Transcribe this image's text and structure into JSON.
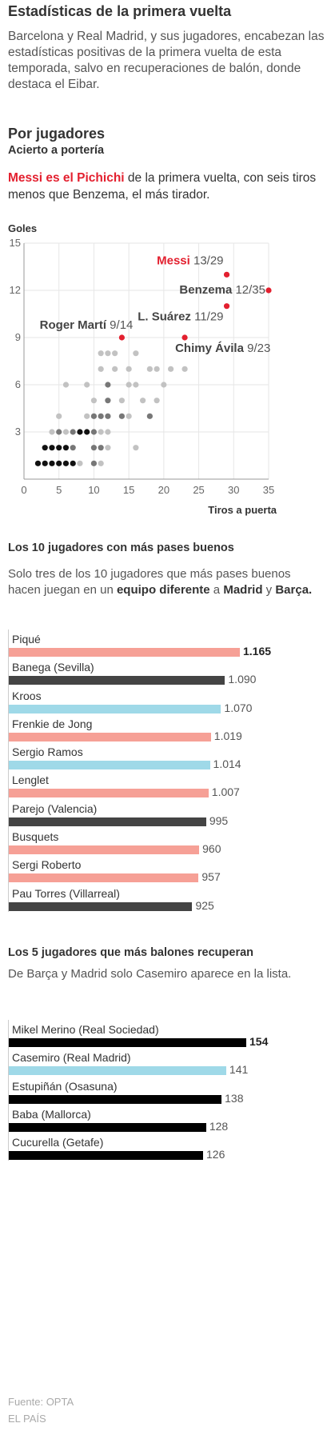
{
  "header": {
    "title": "Estadísticas de la primera vuelta",
    "lead": "Barcelona y Real Madrid, y sus jugadores, encabezan las estadísticas positivas de la primera vuelta de esta temporada, salvo en recuperaciones de balón, donde destaca el Eibar."
  },
  "players_section": {
    "title": "Por jugadores",
    "subtitle": "Acierto a portería",
    "desc_highlight": "Messi es el Pichichi",
    "desc_rest": " de la primera vuelta, con seis tiros menos que Benzema, el más tirador."
  },
  "passes_section": {
    "title": "Los 10 jugadores con más pases buenos",
    "desc_1": "Solo tres de los 10 jugadores que más pases buenos hacen juegan en un ",
    "desc_b1": "equipo diferente",
    "desc_2": " a ",
    "desc_b2": "Madrid",
    "desc_3": " y ",
    "desc_b3": "Barça."
  },
  "recoveries_section": {
    "title": "Los 5 jugadores que más balones recuperan",
    "desc": "De Barça y Madrid solo Casemiro aparece en la lista."
  },
  "source": {
    "line1": "Fuente: OPTA",
    "line2": "EL PAÍS"
  },
  "colors": {
    "barcelona": "#f6a096",
    "madrid": "#9fd9e8",
    "other": "#444444",
    "black": "#000000",
    "highlight": "#e3202f"
  },
  "chart_data": [
    {
      "type": "scatter",
      "title": "Acierto a portería",
      "xlabel": "Tiros a puerta",
      "ylabel": "Goles",
      "xlim": [
        0,
        35
      ],
      "ylim": [
        0,
        15
      ],
      "xticks": [
        0,
        5,
        10,
        15,
        20,
        25,
        30,
        35
      ],
      "yticks": [
        3,
        6,
        9,
        12,
        15
      ],
      "grid": true,
      "highlighted": [
        {
          "name": "Messi",
          "ratio": "13/29",
          "x": 29,
          "y": 13
        },
        {
          "name": "Benzema",
          "ratio": "12/35",
          "x": 35,
          "y": 12
        },
        {
          "name": "L. Suárez",
          "ratio": "11/29",
          "x": 29,
          "y": 11
        },
        {
          "name": "Roger Martí",
          "ratio": "9/14",
          "x": 14,
          "y": 9
        },
        {
          "name": "Chimy Ávila",
          "ratio": "9/23",
          "x": 23,
          "y": 9
        }
      ],
      "points": [
        {
          "x": 2,
          "y": 1,
          "shade": "dark"
        },
        {
          "x": 3,
          "y": 1,
          "shade": "dark"
        },
        {
          "x": 4,
          "y": 1,
          "shade": "dark"
        },
        {
          "x": 5,
          "y": 1,
          "shade": "dark"
        },
        {
          "x": 6,
          "y": 1,
          "shade": "dark"
        },
        {
          "x": 7,
          "y": 1,
          "shade": "dark"
        },
        {
          "x": 8,
          "y": 1,
          "shade": "light"
        },
        {
          "x": 10,
          "y": 1,
          "shade": "mid"
        },
        {
          "x": 11,
          "y": 1,
          "shade": "light"
        },
        {
          "x": 3,
          "y": 2,
          "shade": "dark"
        },
        {
          "x": 4,
          "y": 2,
          "shade": "dark"
        },
        {
          "x": 5,
          "y": 2,
          "shade": "dark"
        },
        {
          "x": 6,
          "y": 2,
          "shade": "dark"
        },
        {
          "x": 7,
          "y": 2,
          "shade": "mid"
        },
        {
          "x": 10,
          "y": 2,
          "shade": "mid"
        },
        {
          "x": 11,
          "y": 2,
          "shade": "mid"
        },
        {
          "x": 12,
          "y": 2,
          "shade": "light"
        },
        {
          "x": 16,
          "y": 2,
          "shade": "light"
        },
        {
          "x": 4,
          "y": 3,
          "shade": "light"
        },
        {
          "x": 5,
          "y": 3,
          "shade": "mid"
        },
        {
          "x": 6,
          "y": 3,
          "shade": "light"
        },
        {
          "x": 7,
          "y": 3,
          "shade": "mid"
        },
        {
          "x": 8,
          "y": 3,
          "shade": "dark"
        },
        {
          "x": 9,
          "y": 3,
          "shade": "dark"
        },
        {
          "x": 10,
          "y": 3,
          "shade": "mid"
        },
        {
          "x": 11,
          "y": 3,
          "shade": "light"
        },
        {
          "x": 12,
          "y": 3,
          "shade": "light"
        },
        {
          "x": 5,
          "y": 4,
          "shade": "light"
        },
        {
          "x": 9,
          "y": 4,
          "shade": "light"
        },
        {
          "x": 10,
          "y": 4,
          "shade": "mid"
        },
        {
          "x": 11,
          "y": 4,
          "shade": "mid"
        },
        {
          "x": 12,
          "y": 4,
          "shade": "mid"
        },
        {
          "x": 14,
          "y": 4,
          "shade": "mid"
        },
        {
          "x": 15,
          "y": 4,
          "shade": "light"
        },
        {
          "x": 18,
          "y": 4,
          "shade": "mid"
        },
        {
          "x": 10,
          "y": 5,
          "shade": "light"
        },
        {
          "x": 12,
          "y": 5,
          "shade": "mid"
        },
        {
          "x": 14,
          "y": 5,
          "shade": "light"
        },
        {
          "x": 17,
          "y": 5,
          "shade": "light"
        },
        {
          "x": 19,
          "y": 5,
          "shade": "light"
        },
        {
          "x": 6,
          "y": 6,
          "shade": "light"
        },
        {
          "x": 9,
          "y": 6,
          "shade": "light"
        },
        {
          "x": 12,
          "y": 6,
          "shade": "mid"
        },
        {
          "x": 15,
          "y": 6,
          "shade": "light"
        },
        {
          "x": 16,
          "y": 6,
          "shade": "light"
        },
        {
          "x": 20,
          "y": 6,
          "shade": "light"
        },
        {
          "x": 11,
          "y": 7,
          "shade": "light"
        },
        {
          "x": 13,
          "y": 7,
          "shade": "light"
        },
        {
          "x": 15,
          "y": 7,
          "shade": "light"
        },
        {
          "x": 18,
          "y": 7,
          "shade": "light"
        },
        {
          "x": 19,
          "y": 7,
          "shade": "light"
        },
        {
          "x": 21,
          "y": 7,
          "shade": "light"
        },
        {
          "x": 23,
          "y": 7,
          "shade": "light"
        },
        {
          "x": 11,
          "y": 8,
          "shade": "light"
        },
        {
          "x": 12,
          "y": 8,
          "shade": "light"
        },
        {
          "x": 13,
          "y": 8,
          "shade": "light"
        },
        {
          "x": 16,
          "y": 8,
          "shade": "light"
        }
      ]
    },
    {
      "type": "bar",
      "orientation": "horizontal",
      "title": "Los 10 jugadores con más pases buenos",
      "xlim": [
        0,
        1165
      ],
      "categories": [
        "Piqué",
        "Banega (Sevilla)",
        "Kroos",
        "Frenkie de Jong",
        "Sergio Ramos",
        "Lenglet",
        "Parejo (Valencia)",
        "Busquets",
        "Sergi Roberto",
        "Pau Torres (Villarreal)"
      ],
      "values": [
        1165,
        1090,
        1070,
        1019,
        1014,
        1007,
        995,
        960,
        957,
        925
      ],
      "labels": [
        "1.165",
        "1.090",
        "1.070",
        "1.019",
        "1.014",
        "1.007",
        "995",
        "960",
        "957",
        "925"
      ],
      "team_colors": [
        "barcelona",
        "other",
        "madrid",
        "barcelona",
        "madrid",
        "barcelona",
        "other",
        "barcelona",
        "barcelona",
        "other"
      ]
    },
    {
      "type": "bar",
      "orientation": "horizontal",
      "title": "Los 5 jugadores que más balones recuperan",
      "xlim": [
        0,
        154
      ],
      "categories": [
        "Mikel Merino (Real Sociedad)",
        "Casemiro (Real Madrid)",
        "Estupiñán (Osasuna)",
        "Baba (Mallorca)",
        "Cucurella (Getafe)"
      ],
      "values": [
        154,
        141,
        138,
        128,
        126
      ],
      "labels": [
        "154",
        "141",
        "138",
        "128",
        "126"
      ],
      "team_colors": [
        "black",
        "madrid",
        "black",
        "black",
        "black"
      ]
    }
  ]
}
